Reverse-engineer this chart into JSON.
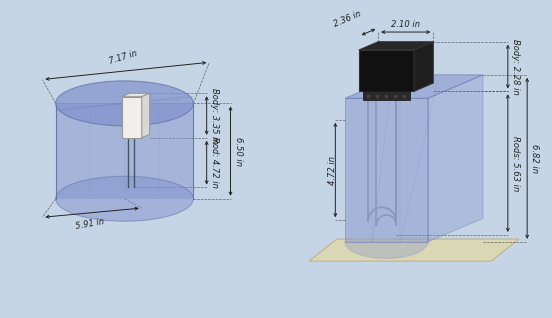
{
  "bg_color": "#c5d5e5",
  "blue_fill": "#8090cc",
  "blue_stroke": "#6070aa",
  "dim_color": "#222222",
  "dim_fs": 6.0,
  "figsize": [
    5.52,
    3.18
  ],
  "dpi": 100,
  "left": {
    "body_label": "Body: 3.35 in",
    "rod_label": "Rod: 4.72 in",
    "w_label": "7.17 in",
    "d_label": "5.91 in",
    "h_label": "6.50 in"
  },
  "right": {
    "body_label": "Body: 2.28 in",
    "rod_label": "Rods: 5.63 in",
    "w_label": "2.10 in",
    "d_label": "2.36 in",
    "h_label": "6.82 in",
    "side_label": "4.72 in"
  }
}
